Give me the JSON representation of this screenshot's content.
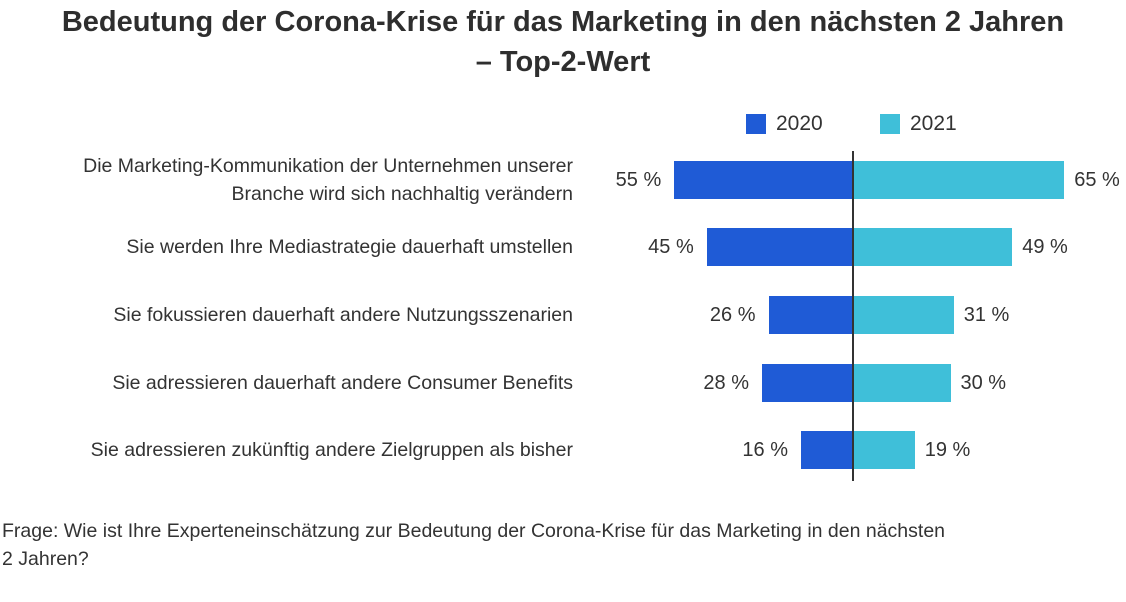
{
  "chart_data": {
    "type": "bar",
    "orientation": "horizontal-diverging",
    "title_lines": [
      "Bedeutung der Corona-Krise für das Marketing in den nächsten 2 Jahren",
      "– Top-2-Wert"
    ],
    "categories": [
      [
        "Die Marketing-Kommunikation der Unternehmen unserer",
        "Branche wird sich nachhaltig verändern"
      ],
      [
        "Sie werden Ihre Mediastrategie dauerhaft umstellen"
      ],
      [
        "Sie fokussieren dauerhaft andere Nutzungsszenarien"
      ],
      [
        "Sie adressieren dauerhaft andere Consumer Benefits"
      ],
      [
        "Sie adressieren zukünftig andere Zielgruppen als bisher"
      ]
    ],
    "series": [
      {
        "name": "2020",
        "values": [
          55,
          45,
          26,
          28,
          16
        ],
        "color": "#1f5bd6",
        "side": "left"
      },
      {
        "name": "2021",
        "values": [
          65,
          49,
          31,
          30,
          19
        ],
        "color": "#3fbfd9",
        "side": "right"
      }
    ],
    "unit": " %",
    "legend_position": "top",
    "grid": false,
    "footnote_lines": [
      "Frage: Wie ist Ihre Experteneinschätzung zur Bedeutung der Corona-Krise für das Marketing in den nächsten",
      "2 Jahren?"
    ]
  }
}
